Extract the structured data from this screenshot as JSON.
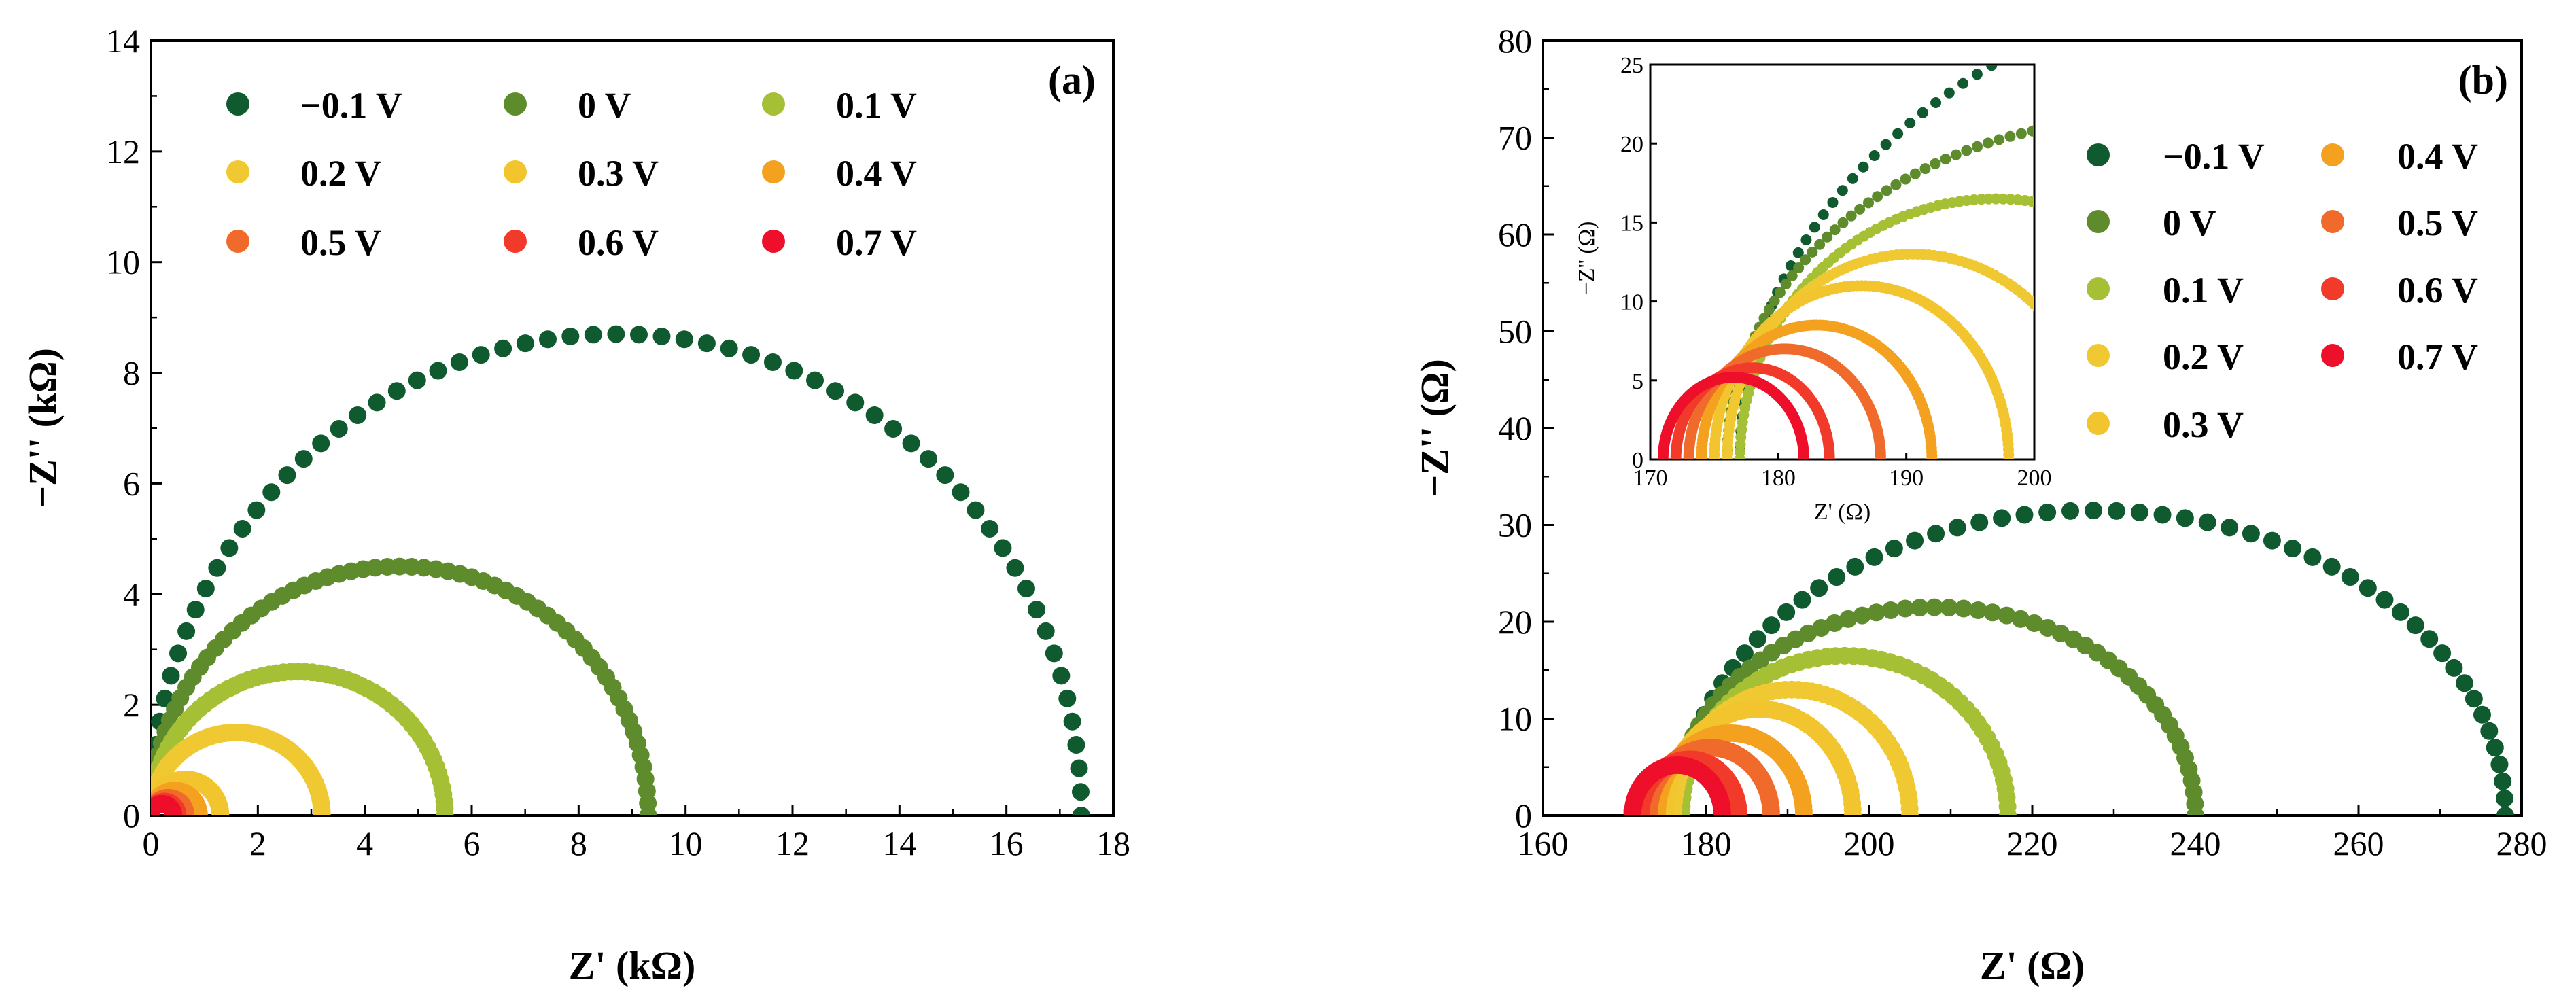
{
  "chart_data": [
    {
      "type": "scatter",
      "panel_label": "(a)",
      "xlabel": "Z' (kΩ)",
      "ylabel": "−Z'' (kΩ)",
      "xlim": [
        0,
        18
      ],
      "ylim": [
        0,
        14
      ],
      "xticks": [
        "0",
        "2",
        "4",
        "6",
        "8",
        "10",
        "12",
        "14",
        "16",
        "18"
      ],
      "yticks": [
        "0",
        "2",
        "4",
        "6",
        "8",
        "10",
        "12",
        "14"
      ],
      "legend_position": "top",
      "series": [
        {
          "name": "−0.1 V",
          "color": "#0f5a2e",
          "x_start": 0.0,
          "x_end": 17.4,
          "peak": 8.7
        },
        {
          "name": "0 V",
          "color": "#5e8c2c",
          "x_start": 0.0,
          "x_end": 9.3,
          "peak": 4.5
        },
        {
          "name": "0.1 V",
          "color": "#a6c035",
          "x_start": 0.0,
          "x_end": 5.5,
          "peak": 2.6
        },
        {
          "name": "0.2 V",
          "color": "#f0c832",
          "x_start": 0.0,
          "x_end": 3.2,
          "peak": 1.5
        },
        {
          "name": "0.3 V",
          "color": "#f2c42e",
          "x_start": 0.0,
          "x_end": 1.3,
          "peak": 0.65
        },
        {
          "name": "0.4 V",
          "color": "#f4a11f",
          "x_start": 0.0,
          "x_end": 0.9,
          "peak": 0.45
        },
        {
          "name": "0.5 V",
          "color": "#f06a2c",
          "x_start": 0.0,
          "x_end": 0.65,
          "peak": 0.32
        },
        {
          "name": "0.6 V",
          "color": "#f23a2a",
          "x_start": 0.0,
          "x_end": 0.5,
          "peak": 0.25
        },
        {
          "name": "0.7 V",
          "color": "#ee0f2a",
          "x_start": 0.0,
          "x_end": 0.42,
          "peak": 0.21
        }
      ]
    },
    {
      "type": "scatter",
      "panel_label": "(b)",
      "xlabel": "Z' (Ω)",
      "ylabel": "−Z'' (Ω)",
      "xlim": [
        160,
        280
      ],
      "ylim": [
        0,
        80
      ],
      "xticks": [
        "160",
        "180",
        "200",
        "220",
        "240",
        "260",
        "280"
      ],
      "yticks": [
        "0",
        "10",
        "20",
        "30",
        "40",
        "50",
        "60",
        "70",
        "80"
      ],
      "legend_position": "right",
      "series": [
        {
          "name": "−0.1 V",
          "color": "#0f5a2e",
          "x_start": 177,
          "x_end": 278,
          "peak": 31.5
        },
        {
          "name": "0 V",
          "color": "#5e8c2c",
          "x_start": 176,
          "x_end": 240,
          "peak": 21.5
        },
        {
          "name": "0.1 V",
          "color": "#a6c035",
          "x_start": 177,
          "x_end": 217,
          "peak": 16.5
        },
        {
          "name": "0.2 V",
          "color": "#f0c832",
          "x_start": 176,
          "x_end": 205,
          "peak": 13.0
        },
        {
          "name": "0.3 V",
          "color": "#f2c42e",
          "x_start": 175,
          "x_end": 198,
          "peak": 11.0
        },
        {
          "name": "0.4 V",
          "color": "#f4a11f",
          "x_start": 174,
          "x_end": 192,
          "peak": 8.5
        },
        {
          "name": "0.5 V",
          "color": "#f06a2c",
          "x_start": 173,
          "x_end": 188,
          "peak": 7.0
        },
        {
          "name": "0.6 V",
          "color": "#f23a2a",
          "x_start": 172,
          "x_end": 184,
          "peak": 5.8
        },
        {
          "name": "0.7 V",
          "color": "#ee0f2a",
          "x_start": 171,
          "x_end": 182,
          "peak": 5.2
        }
      ],
      "inset": {
        "xlabel": "Z' (Ω)",
        "ylabel": "−Z'' (Ω)",
        "xlim": [
          170,
          200
        ],
        "ylim": [
          0,
          25
        ],
        "xticks": [
          "170",
          "180",
          "190",
          "200"
        ],
        "yticks": [
          "0",
          "5",
          "10",
          "15",
          "20",
          "25"
        ]
      }
    }
  ]
}
